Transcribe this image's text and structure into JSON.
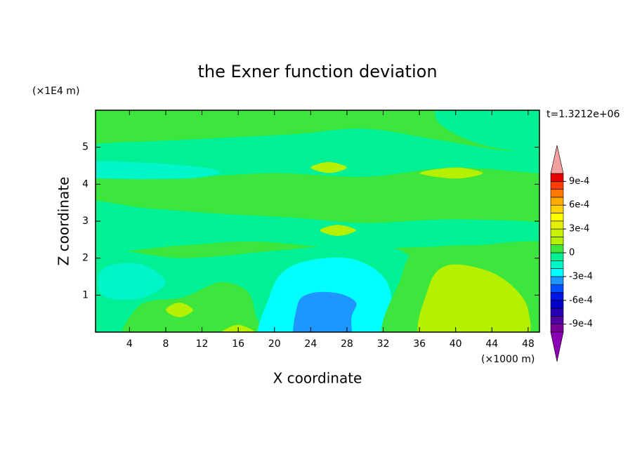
{
  "chart_data": {
    "type": "contour",
    "title": "the Exner function deviation",
    "xlabel": "X coordinate",
    "ylabel": "Z coordinate",
    "x_unit_label": "(×1000 m)",
    "y_unit_label": "(×1E4 m)",
    "time_label": "t=1.3212e+06",
    "xlim": [
      0.25,
      49.25
    ],
    "ylim": [
      0,
      6
    ],
    "xticks": [
      4,
      8,
      12,
      16,
      20,
      24,
      28,
      32,
      36,
      40,
      44,
      48
    ],
    "yticks": [
      1,
      2,
      3,
      4,
      5
    ],
    "levels": [
      -0.001,
      -0.0009,
      -0.0008,
      -0.0007,
      -0.0006,
      -0.0005,
      -0.0004,
      -0.0003,
      -0.0002,
      -0.0001,
      0,
      0.0001,
      0.0002,
      0.0003,
      0.0004,
      0.0005,
      0.0006,
      0.0007,
      0.0008,
      0.0009,
      0.001
    ],
    "colors": [
      "#780096",
      "#5000a0",
      "#2800b4",
      "#0000c8",
      "#0014e6",
      "#0050ff",
      "#1e96ff",
      "#00ffff",
      "#00f5c8",
      "#00f096",
      "#3ce63c",
      "#b4f000",
      "#c8f000",
      "#e6f000",
      "#ffff00",
      "#ffd200",
      "#ffaa00",
      "#ff7800",
      "#ff3c00",
      "#e60000"
    ],
    "under_color": "#8c00b4",
    "over_color": "#f4a0a0",
    "colorbar_ticks": [
      {
        "value": 0.0009,
        "label": "9e-4"
      },
      {
        "value": 0.0006,
        "label": "6e-4"
      },
      {
        "value": 0.0003,
        "label": "3e-4"
      },
      0,
      {
        "value": -0.0003,
        "label": "-3e-4"
      },
      {
        "value": -0.0006,
        "label": "-6e-4"
      },
      {
        "value": -0.0009,
        "label": "-9e-4"
      }
    ]
  }
}
